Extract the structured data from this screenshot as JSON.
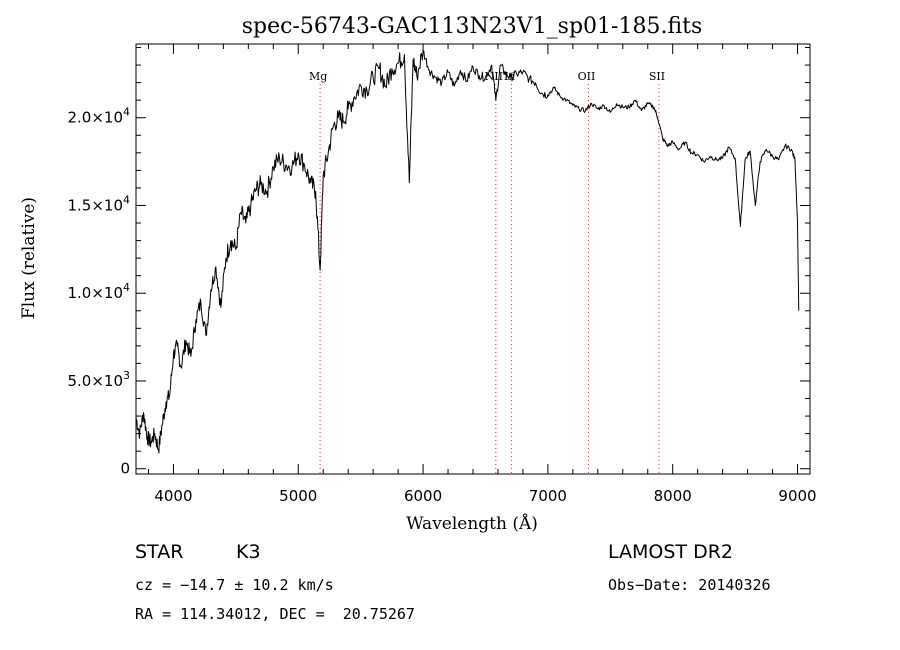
{
  "chart_data": {
    "type": "line",
    "title": "spec-56743-GAC113N23V1_sp01-185.fits",
    "xlabel": "Wavelength (Å)",
    "ylabel": "Flux (relative)",
    "xlim": [
      3700,
      9100
    ],
    "ylim": [
      -300,
      24200
    ],
    "x_ticks": [
      4000,
      5000,
      6000,
      7000,
      8000,
      9000
    ],
    "x_tick_labels": [
      "4000",
      "5000",
      "6000",
      "7000",
      "8000",
      "9000"
    ],
    "y_ticks": [
      0,
      5000,
      10000,
      15000,
      20000
    ],
    "y_tick_labels": [
      {
        "mantissa": "0",
        "exp": ""
      },
      {
        "mantissa": "5.0×10",
        "exp": "3"
      },
      {
        "mantissa": "1.0×10",
        "exp": "4"
      },
      {
        "mantissa": "1.5×10",
        "exp": "4"
      },
      {
        "mantissa": "2.0×10",
        "exp": "4"
      }
    ],
    "grid": false,
    "lines": [
      {
        "label": "Mg",
        "x": 5175
      },
      {
        "label": "NII",
        "x": 6583
      },
      {
        "label": "Li",
        "x": 6708
      },
      {
        "label": "OII",
        "x": 7325
      },
      {
        "label": "SII",
        "x": 7890
      }
    ],
    "series": [
      {
        "x": [
          3700,
          3730,
          3760,
          3790,
          3820,
          3850,
          3880,
          3910,
          3940,
          3970,
          4000,
          4030,
          4060,
          4100,
          4140,
          4180,
          4220,
          4260,
          4300,
          4340,
          4380,
          4420,
          4460,
          4500,
          4540,
          4580,
          4620,
          4660,
          4700,
          4750,
          4800,
          4850,
          4900,
          4950,
          5000,
          5050,
          5100,
          5140,
          5175,
          5200,
          5240,
          5280,
          5320,
          5360,
          5400,
          5450,
          5500,
          5550,
          5600,
          5650,
          5700,
          5750,
          5800,
          5850,
          5890,
          5920,
          5950,
          6000,
          6050,
          6100,
          6150,
          6200,
          6250,
          6300,
          6350,
          6400,
          6450,
          6500,
          6550,
          6583,
          6620,
          6660,
          6700,
          6750,
          6800,
          6850,
          6900,
          6950,
          7000,
          7050,
          7100,
          7150,
          7200,
          7250,
          7300,
          7350,
          7400,
          7450,
          7500,
          7550,
          7600,
          7650,
          7700,
          7750,
          7800,
          7850,
          7880,
          7920,
          7960,
          8000,
          8050,
          8100,
          8150,
          8200,
          8250,
          8300,
          8350,
          8400,
          8450,
          8500,
          8542,
          8580,
          8620,
          8662,
          8700,
          8750,
          8800,
          8850,
          8900,
          8950,
          8980,
          9000,
          9010
        ],
        "y": [
          2900,
          2000,
          3200,
          1800,
          1500,
          2000,
          1100,
          2500,
          3800,
          4200,
          6500,
          7000,
          5800,
          7300,
          6400,
          8500,
          9500,
          7600,
          10200,
          11500,
          9200,
          12000,
          13000,
          12500,
          14600,
          14000,
          15000,
          15900,
          16200,
          15800,
          17200,
          17700,
          17300,
          17200,
          18000,
          17300,
          16300,
          15800,
          11300,
          16700,
          18000,
          19500,
          20000,
          19800,
          20500,
          21200,
          21800,
          21600,
          22300,
          22800,
          21800,
          22800,
          23100,
          23600,
          16300,
          23300,
          22400,
          23800,
          22700,
          22300,
          22000,
          22600,
          21800,
          22700,
          22100,
          22900,
          22400,
          22300,
          23000,
          21000,
          23000,
          22500,
          22300,
          22500,
          22600,
          22200,
          22000,
          21400,
          21300,
          21700,
          21200,
          21000,
          20700,
          20500,
          20400,
          20800,
          20500,
          20700,
          20300,
          20800,
          20600,
          20600,
          21000,
          20400,
          20800,
          20600,
          20000,
          18800,
          18400,
          18600,
          18200,
          18600,
          18000,
          17900,
          17500,
          17800,
          17600,
          17700,
          18300,
          17700,
          13800,
          17600,
          18100,
          15000,
          17500,
          18200,
          17800,
          17600,
          18400,
          18200,
          17600,
          14000,
          9000
        ]
      }
    ]
  },
  "info": {
    "objclass": "STAR",
    "subclass": "K3",
    "cz": "cz = −14.7 ± 10.2 km/s",
    "coords": "RA = 114.34012, DEC =  20.75267",
    "survey": "LAMOST DR2",
    "obsdate": "Obs−Date: 20140326"
  }
}
